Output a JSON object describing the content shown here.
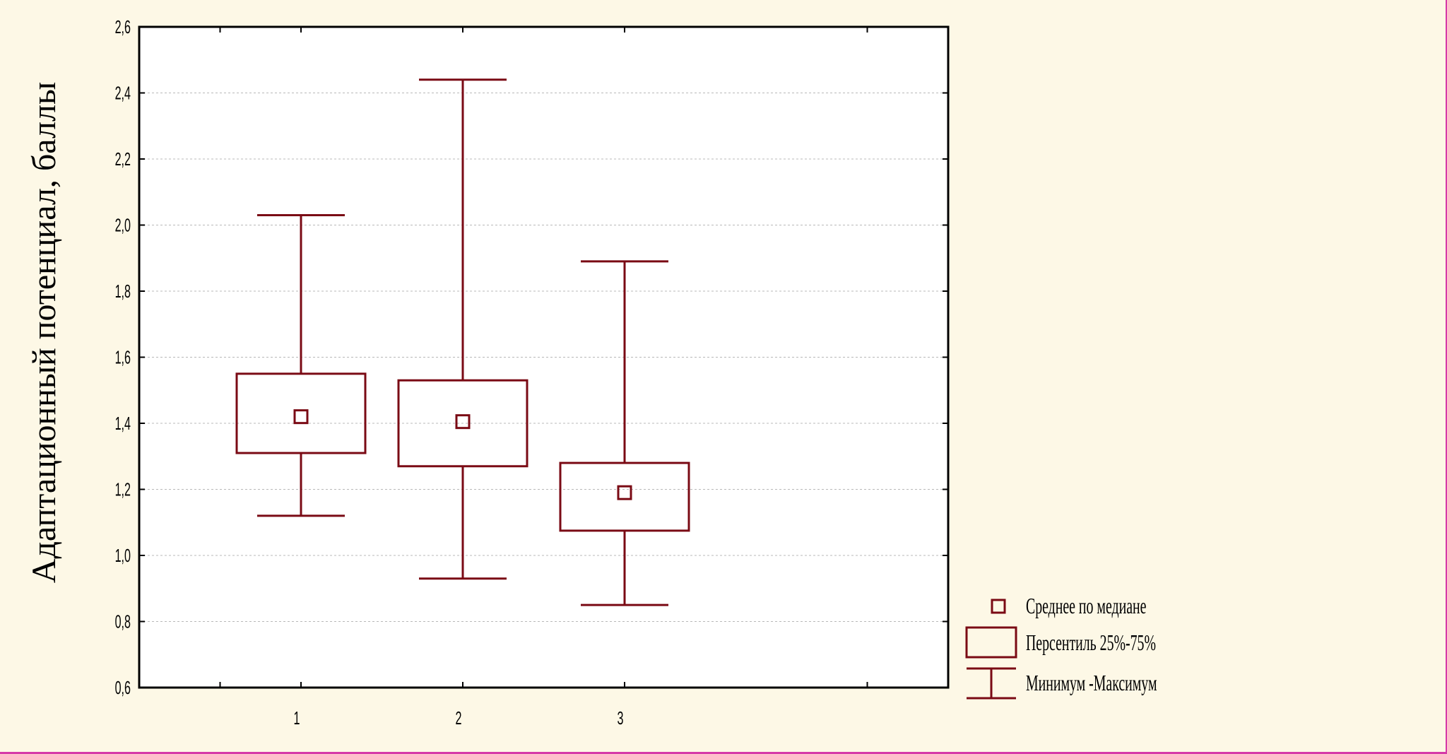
{
  "colors": {
    "background": "#fdf8e6",
    "plot_background": "#ffffff",
    "series": "#7a0a14",
    "axis": "#000000",
    "grid": "#b8b8b8",
    "frame": "#d63aa8"
  },
  "chart_data": {
    "type": "boxplot",
    "title": "",
    "xlabel": "",
    "ylabel": "Адаптационный потенциал, баллы",
    "ylim": [
      0.6,
      2.6
    ],
    "xlim": [
      0,
      5
    ],
    "y_ticks": [
      0.6,
      0.8,
      1.0,
      1.2,
      1.4,
      1.6,
      1.8,
      2.0,
      2.2,
      2.4,
      2.6
    ],
    "y_tick_labels": [
      "0,6",
      "0,8",
      "1,0",
      "1,2",
      "1,4",
      "1,6",
      "1,8",
      "2,0",
      "2,2",
      "2,4",
      "2,6"
    ],
    "x_minor_ticks": [
      0.5,
      4.5
    ],
    "categories": [
      "1",
      "2",
      "3"
    ],
    "grid": true,
    "legend_position": "bottom-right, outside plot",
    "groups": [
      {
        "category": "1",
        "median": 1.42,
        "q1": 1.31,
        "q3": 1.55,
        "min": 1.12,
        "max": 2.03
      },
      {
        "category": "2",
        "median": 1.405,
        "q1": 1.27,
        "q3": 1.53,
        "min": 0.93,
        "max": 2.44
      },
      {
        "category": "3",
        "median": 1.19,
        "q1": 1.075,
        "q3": 1.28,
        "min": 0.85,
        "max": 1.89
      }
    ],
    "legend": [
      {
        "symbol": "square-marker",
        "label": "Среднее по медиане"
      },
      {
        "symbol": "box",
        "label": "Персентиль 25%-75%"
      },
      {
        "symbol": "whisker",
        "label": "Минимум -Максимум"
      }
    ]
  }
}
